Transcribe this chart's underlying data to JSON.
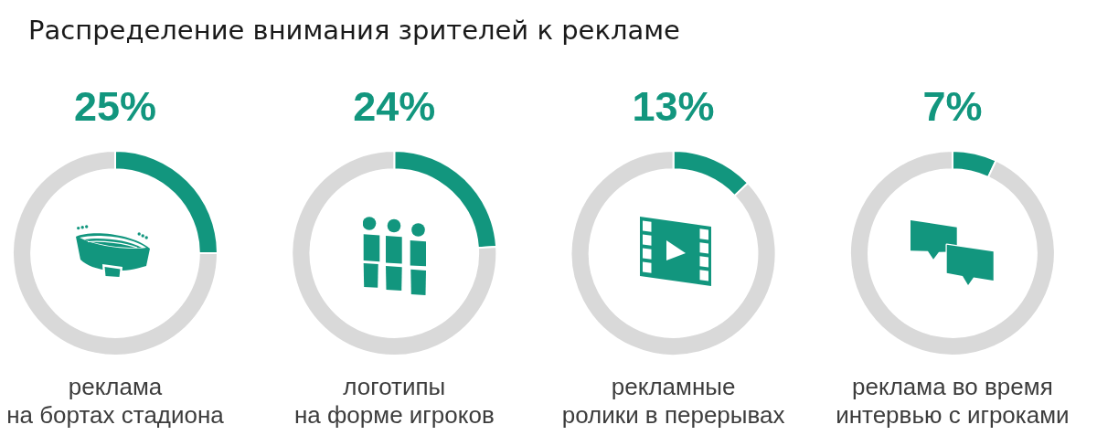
{
  "chart_data": [
    {
      "type": "donut",
      "title": "Распределение внимания зрителей к рекламе",
      "xlabel": "реклама\nна бортах стадиона",
      "categories": [
        null,
        null
      ],
      "values": [
        25,
        75
      ],
      "colors": [
        "#12967e",
        "#d9d9d9"
      ],
      "value_labels": [
        "25%",
        null
      ]
    },
    {
      "type": "donut",
      "xlabel": "логотипы\nна форме игроков",
      "categories": [
        null,
        null
      ],
      "values": [
        24,
        76
      ],
      "colors": [
        "#12967e",
        "#d9d9d9"
      ],
      "value_labels": [
        "24%",
        null
      ]
    },
    {
      "type": "donut",
      "xlabel": "рекламные\nролики в перерывах",
      "categories": [
        null,
        null
      ],
      "values": [
        13,
        87
      ],
      "colors": [
        "#12967e",
        "#d9d9d9"
      ],
      "value_labels": [
        "13%",
        null
      ]
    },
    {
      "type": "donut",
      "xlabel": "реклама во время\nинтервью с игроками",
      "categories": [
        null,
        null
      ],
      "values": [
        7,
        93
      ],
      "colors": [
        "#12967e",
        "#d9d9d9"
      ],
      "value_labels": [
        "7%",
        null
      ]
    }
  ]
}
